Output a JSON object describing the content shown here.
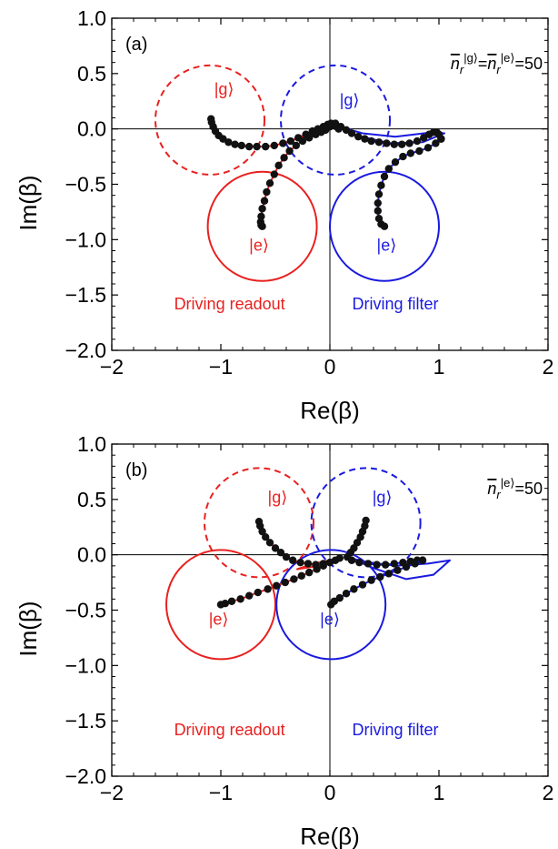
{
  "chart_data": [
    {
      "type": "line",
      "panel_label": "(a)",
      "xlabel": "Re(β)",
      "ylabel": "Im(β)",
      "xlim": [
        -2,
        2
      ],
      "ylim": [
        -2,
        1
      ],
      "xticks": [
        "−2",
        "−1",
        "0",
        "1",
        "2"
      ],
      "yticks": [
        "−2.0",
        "−1.5",
        "−1.0",
        "−0.5",
        "0.0",
        "0.5",
        "1.0"
      ],
      "annotation": {
        "main": "n",
        "sub": "r",
        "sup1": "|g⟩",
        "sep": "=",
        "sup2": "|e⟩",
        "rest": "=50"
      },
      "labels": {
        "readout": "Driving readout",
        "filter": "Driving filter"
      },
      "colors": {
        "readout": "#e8211f",
        "filter": "#1a1adf",
        "points": "#111111",
        "axes": "#000000"
      },
      "circles": [
        {
          "color": "readout",
          "style": "dashed",
          "cx": -1.1,
          "cy": 0.08,
          "r": 0.5,
          "state": "|g⟩",
          "lx": -0.97,
          "ly": 0.31
        },
        {
          "color": "filter",
          "style": "dashed",
          "cx": 0.05,
          "cy": 0.08,
          "r": 0.5,
          "state": "|g⟩",
          "lx": 0.18,
          "ly": 0.21
        },
        {
          "color": "readout",
          "style": "solid",
          "cx": -0.62,
          "cy": -0.88,
          "r": 0.5,
          "state": "|e⟩",
          "lx": -0.65,
          "ly": -1.1
        },
        {
          "color": "filter",
          "style": "solid",
          "cx": 0.5,
          "cy": -0.88,
          "r": 0.5,
          "state": "|e⟩",
          "lx": 0.52,
          "ly": -1.1
        }
      ],
      "series": [
        {
          "color": "readout",
          "points": [
            [
              -1.09,
              0.09
            ],
            [
              -1.085,
              0.06
            ],
            [
              -1.07,
              0.02
            ],
            [
              -1.05,
              -0.02
            ],
            [
              -1.02,
              -0.06
            ],
            [
              -0.98,
              -0.09
            ],
            [
              -0.93,
              -0.12
            ],
            [
              -0.87,
              -0.14
            ],
            [
              -0.81,
              -0.15
            ],
            [
              -0.74,
              -0.16
            ],
            [
              -0.67,
              -0.16
            ],
            [
              -0.59,
              -0.16
            ],
            [
              -0.51,
              -0.15
            ],
            [
              -0.43,
              -0.13
            ],
            [
              -0.36,
              -0.11
            ],
            [
              -0.29,
              -0.08
            ],
            [
              -0.22,
              -0.05
            ],
            [
              -0.16,
              -0.02
            ],
            [
              -0.11,
              0.0
            ],
            [
              -0.06,
              0.02
            ],
            [
              -0.02,
              0.04
            ],
            [
              0.01,
              0.05
            ],
            [
              0.04,
              0.04
            ],
            [
              0.06,
              0.02
            ],
            [
              0.08,
              0.0
            ]
          ]
        },
        {
          "color": "readout",
          "points": [
            [
              0.0,
              0.02
            ],
            [
              -0.04,
              -0.01
            ],
            [
              -0.08,
              -0.03
            ],
            [
              -0.13,
              -0.05
            ],
            [
              -0.19,
              -0.08
            ],
            [
              -0.25,
              -0.11
            ],
            [
              -0.31,
              -0.15
            ],
            [
              -0.37,
              -0.2
            ],
            [
              -0.42,
              -0.26
            ],
            [
              -0.47,
              -0.33
            ],
            [
              -0.51,
              -0.41
            ],
            [
              -0.55,
              -0.49
            ],
            [
              -0.58,
              -0.57
            ],
            [
              -0.6,
              -0.65
            ],
            [
              -0.62,
              -0.72
            ],
            [
              -0.63,
              -0.79
            ],
            [
              -0.635,
              -0.84
            ],
            [
              -0.63,
              -0.87
            ],
            [
              -0.62,
              -0.88
            ]
          ]
        },
        {
          "color": "filter",
          "points": [
            [
              0.05,
              0.05
            ],
            [
              0.1,
              0.02
            ],
            [
              0.15,
              -0.01
            ],
            [
              0.2,
              -0.04
            ],
            [
              0.26,
              -0.07
            ],
            [
              0.32,
              -0.09
            ],
            [
              0.38,
              -0.11
            ],
            [
              0.45,
              -0.12
            ],
            [
              0.52,
              -0.13
            ],
            [
              0.59,
              -0.14
            ],
            [
              0.66,
              -0.14
            ],
            [
              0.73,
              -0.13
            ],
            [
              0.8,
              -0.11
            ],
            [
              0.86,
              -0.08
            ],
            [
              0.91,
              -0.05
            ],
            [
              0.95,
              -0.03
            ],
            [
              0.98,
              -0.03
            ],
            [
              1.0,
              -0.05
            ],
            [
              1.02,
              -0.09
            ]
          ]
        },
        {
          "color": "filter",
          "points": [
            [
              1.02,
              -0.09
            ],
            [
              0.97,
              -0.13
            ],
            [
              0.9,
              -0.17
            ],
            [
              0.82,
              -0.2
            ],
            [
              0.74,
              -0.22
            ],
            [
              0.67,
              -0.25
            ],
            [
              0.6,
              -0.3
            ],
            [
              0.54,
              -0.36
            ],
            [
              0.5,
              -0.43
            ],
            [
              0.47,
              -0.51
            ],
            [
              0.45,
              -0.59
            ],
            [
              0.44,
              -0.67
            ],
            [
              0.44,
              -0.74
            ],
            [
              0.45,
              -0.81
            ],
            [
              0.47,
              -0.86
            ],
            [
              0.5,
              -0.88
            ]
          ]
        }
      ],
      "loops": [
        {
          "color": "readout",
          "points": [
            [
              -0.02,
              0.04
            ],
            [
              -0.1,
              -0.02
            ],
            [
              -0.2,
              -0.07
            ],
            [
              -0.3,
              -0.1
            ],
            [
              -0.22,
              -0.06
            ],
            [
              -0.12,
              0.0
            ],
            [
              -0.02,
              0.04
            ]
          ]
        },
        {
          "color": "filter",
          "points": [
            [
              0.05,
              0.03
            ],
            [
              0.25,
              -0.06
            ],
            [
              0.55,
              -0.13
            ],
            [
              0.85,
              -0.12
            ],
            [
              1.05,
              -0.04
            ],
            [
              0.95,
              -0.03
            ],
            [
              0.6,
              -0.07
            ],
            [
              0.3,
              -0.04
            ],
            [
              0.05,
              0.03
            ]
          ]
        }
      ]
    },
    {
      "type": "line",
      "panel_label": "(b)",
      "xlabel": "Re(β)",
      "ylabel": "Im(β)",
      "xlim": [
        -2,
        2
      ],
      "ylim": [
        -2,
        1
      ],
      "xticks": [
        "−2",
        "−1",
        "0",
        "1",
        "2"
      ],
      "yticks": [
        "−2.0",
        "−1.5",
        "−1.0",
        "−0.5",
        "0.0",
        "0.5",
        "1.0"
      ],
      "annotation": {
        "main": "n",
        "sub": "r",
        "sup1": "",
        "sep": "",
        "sup2": "|e⟩",
        "rest": "=50"
      },
      "labels": {
        "readout": "Driving readout",
        "filter": "Driving filter"
      },
      "colors": {
        "readout": "#e8211f",
        "filter": "#1a1adf",
        "points": "#111111",
        "axes": "#000000"
      },
      "circles": [
        {
          "color": "readout",
          "style": "dashed",
          "cx": -0.65,
          "cy": 0.29,
          "r": 0.5,
          "state": "|g⟩",
          "lx": -0.48,
          "ly": 0.47
        },
        {
          "color": "filter",
          "style": "dashed",
          "cx": 0.33,
          "cy": 0.29,
          "r": 0.5,
          "state": "|g⟩",
          "lx": 0.48,
          "ly": 0.47
        },
        {
          "color": "readout",
          "style": "solid",
          "cx": -1.0,
          "cy": -0.45,
          "r": 0.5,
          "state": "|e⟩",
          "lx": -1.02,
          "ly": -0.63
        },
        {
          "color": "filter",
          "style": "solid",
          "cx": 0.01,
          "cy": -0.45,
          "r": 0.5,
          "state": "|e⟩",
          "lx": 0.0,
          "ly": -0.63
        }
      ],
      "series": [
        {
          "color": "readout",
          "points": [
            [
              -0.65,
              0.3
            ],
            [
              -0.64,
              0.26
            ],
            [
              -0.62,
              0.21
            ],
            [
              -0.59,
              0.16
            ],
            [
              -0.55,
              0.11
            ],
            [
              -0.5,
              0.06
            ],
            [
              -0.45,
              0.02
            ],
            [
              -0.4,
              -0.02
            ],
            [
              -0.34,
              -0.05
            ],
            [
              -0.27,
              -0.07
            ],
            [
              -0.2,
              -0.08
            ],
            [
              -0.13,
              -0.09
            ],
            [
              -0.06,
              -0.08
            ],
            [
              0.0,
              -0.07
            ],
            [
              0.05,
              -0.05
            ],
            [
              0.09,
              -0.03
            ]
          ]
        },
        {
          "color": "readout",
          "points": [
            [
              0.0,
              -0.07
            ],
            [
              -0.06,
              -0.1
            ],
            [
              -0.12,
              -0.13
            ],
            [
              -0.19,
              -0.16
            ],
            [
              -0.26,
              -0.19
            ],
            [
              -0.33,
              -0.22
            ],
            [
              -0.41,
              -0.25
            ],
            [
              -0.49,
              -0.28
            ],
            [
              -0.57,
              -0.31
            ],
            [
              -0.66,
              -0.34
            ],
            [
              -0.74,
              -0.37
            ],
            [
              -0.82,
              -0.4
            ],
            [
              -0.9,
              -0.42
            ],
            [
              -0.96,
              -0.44
            ],
            [
              -1.0,
              -0.45
            ]
          ]
        },
        {
          "color": "filter",
          "points": [
            [
              0.33,
              0.31
            ],
            [
              0.32,
              0.26
            ],
            [
              0.3,
              0.21
            ],
            [
              0.28,
              0.16
            ],
            [
              0.25,
              0.11
            ],
            [
              0.22,
              0.06
            ],
            [
              0.19,
              0.02
            ],
            [
              0.16,
              -0.02
            ],
            [
              0.2,
              -0.05
            ],
            [
              0.27,
              -0.07
            ],
            [
              0.35,
              -0.08
            ],
            [
              0.43,
              -0.09
            ],
            [
              0.51,
              -0.09
            ],
            [
              0.59,
              -0.08
            ],
            [
              0.67,
              -0.07
            ],
            [
              0.74,
              -0.06
            ],
            [
              0.8,
              -0.05
            ],
            [
              0.85,
              -0.05
            ]
          ]
        },
        {
          "color": "filter",
          "points": [
            [
              0.85,
              -0.05
            ],
            [
              0.78,
              -0.08
            ],
            [
              0.7,
              -0.11
            ],
            [
              0.62,
              -0.14
            ],
            [
              0.54,
              -0.17
            ],
            [
              0.46,
              -0.2
            ],
            [
              0.38,
              -0.23
            ],
            [
              0.3,
              -0.27
            ],
            [
              0.22,
              -0.31
            ],
            [
              0.15,
              -0.35
            ],
            [
              0.09,
              -0.39
            ],
            [
              0.04,
              -0.42
            ],
            [
              0.01,
              -0.45
            ]
          ]
        }
      ],
      "loops": [
        {
          "color": "filter",
          "points": [
            [
              0.16,
              -0.02
            ],
            [
              0.4,
              -0.12
            ],
            [
              0.7,
              -0.22
            ],
            [
              0.95,
              -0.18
            ],
            [
              1.1,
              -0.05
            ],
            [
              0.9,
              -0.08
            ],
            [
              0.6,
              -0.1
            ],
            [
              0.3,
              -0.06
            ],
            [
              0.16,
              -0.02
            ]
          ]
        },
        {
          "color": "readout",
          "points": [
            [
              0.09,
              -0.03
            ],
            [
              -0.1,
              -0.1
            ],
            [
              -0.3,
              -0.13
            ],
            [
              -0.15,
              -0.08
            ],
            [
              0.09,
              -0.03
            ]
          ]
        }
      ]
    }
  ]
}
